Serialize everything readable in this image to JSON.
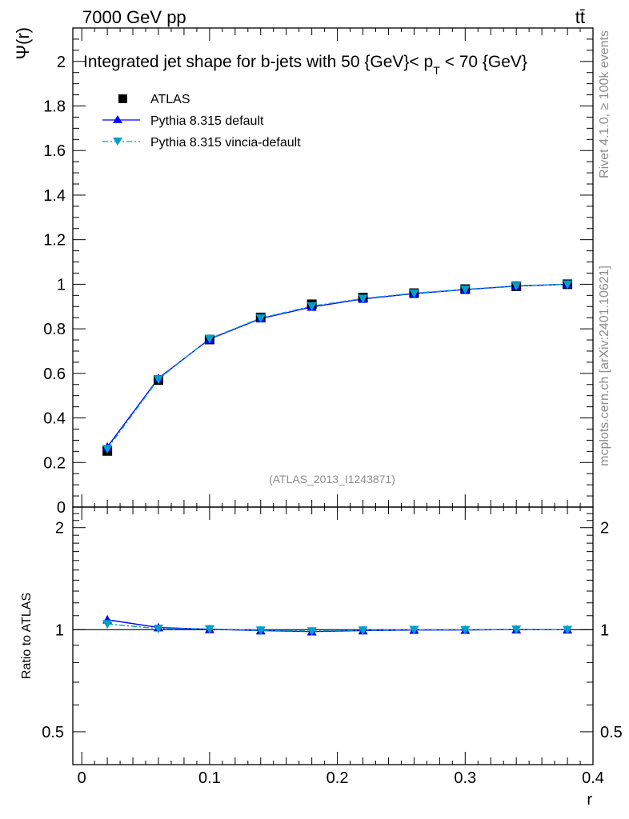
{
  "header": {
    "energy_label": "7000 GeV pp",
    "process_label": "tt̄"
  },
  "side_labels": {
    "rivet": "Rivet 4.1.0, ≥ 100k events",
    "mcplots": "mcplots.cern.ch [arXiv:2401.10621]"
  },
  "chart_data": [
    {
      "type": "line",
      "title_prefix": "Integrated jet shape for b-jets with 50 {GeV}< p",
      "title_subscript": "T",
      "title_suffix": " < 70 {GeV}",
      "ylabel": "Ψ(r)",
      "ylim": [
        0,
        2.15
      ],
      "yticks": [
        0,
        0.2,
        0.4,
        0.6,
        0.8,
        1,
        1.2,
        1.4,
        1.6,
        1.8,
        2
      ],
      "ytick_labels": [
        "0",
        "0.2",
        "0.4",
        "0.6",
        "0.8",
        "1",
        "1.2",
        "1.4",
        "1.6",
        "1.8",
        "2"
      ],
      "x": [
        0.02,
        0.06,
        0.1,
        0.14,
        0.18,
        0.22,
        0.26,
        0.3,
        0.34,
        0.38
      ],
      "watermark": "(ATLAS_2013_I1243871)",
      "legend_position": "top-left",
      "series": [
        {
          "name": "ATLAS",
          "color": "#000000",
          "marker": "square",
          "line": "none",
          "values": [
            0.252,
            0.57,
            0.752,
            0.851,
            0.91,
            0.94,
            0.96,
            0.978,
            0.991,
            1.0
          ]
        },
        {
          "name": "Pythia 8.315 default",
          "color": "#0000ff",
          "marker": "triangle-up",
          "line": "solid",
          "values": [
            0.27,
            0.578,
            0.754,
            0.846,
            0.898,
            0.934,
            0.958,
            0.976,
            0.992,
            1.0
          ]
        },
        {
          "name": "Pythia 8.315 vincia-default",
          "color": "#00a0c8",
          "marker": "triangle-down",
          "line": "dashdot",
          "values": [
            0.262,
            0.574,
            0.756,
            0.848,
            0.902,
            0.936,
            0.96,
            0.977,
            0.993,
            1.0
          ]
        }
      ]
    },
    {
      "type": "line",
      "ylabel": "Ratio to ATLAS",
      "xlabel": "r",
      "xlim": [
        -0.007,
        0.4
      ],
      "xticks": [
        0,
        0.1,
        0.2,
        0.3,
        0.4
      ],
      "xtick_labels": [
        "0",
        "0.1",
        "0.2",
        "0.3",
        "0.4"
      ],
      "ylim": [
        0.4,
        2.3
      ],
      "yscale": "log",
      "yticks": [
        0.5,
        1,
        2
      ],
      "ytick_labels": [
        "0.5",
        "1",
        "2"
      ],
      "reference_line": 1,
      "x": [
        0.02,
        0.06,
        0.1,
        0.14,
        0.18,
        0.22,
        0.26,
        0.3,
        0.34,
        0.38
      ],
      "series": [
        {
          "name": "Pythia 8.315 default",
          "color": "#0000ff",
          "marker": "triangle-up",
          "line": "solid",
          "values": [
            1.07,
            1.015,
            1.003,
            0.994,
            0.987,
            0.994,
            0.998,
            0.998,
            1.001,
            1.0
          ]
        },
        {
          "name": "Pythia 8.315 vincia-default",
          "color": "#00a0c8",
          "marker": "triangle-down",
          "line": "dashdot",
          "values": [
            1.04,
            1.008,
            1.005,
            0.996,
            0.991,
            0.996,
            1.0,
            0.999,
            1.002,
            1.0
          ]
        }
      ]
    }
  ]
}
